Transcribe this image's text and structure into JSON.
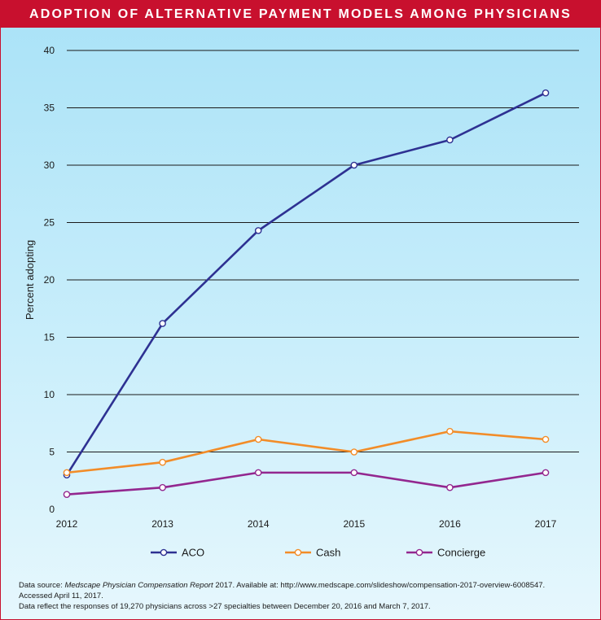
{
  "header": {
    "title": "ADOPTION OF ALTERNATIVE PAYMENT MODELS AMONG PHYSICIANS"
  },
  "colors": {
    "accent": "#c8102e",
    "ACO": "#2e3192",
    "Cash": "#f28c28",
    "Concierge": "#93278f"
  },
  "chart_data": {
    "type": "line",
    "title": "ADOPTION OF ALTERNATIVE PAYMENT MODELS AMONG PHYSICIANS",
    "xlabel": "",
    "ylabel": "Percent adopting",
    "x": [
      "2012",
      "2013",
      "2014",
      "2015",
      "2016",
      "2017"
    ],
    "ylim": [
      0,
      40
    ],
    "yticks": [
      "0",
      "5",
      "10",
      "15",
      "20",
      "25",
      "30",
      "35",
      "40"
    ],
    "grid": true,
    "legend_position": "bottom",
    "series": [
      {
        "name": "ACO",
        "values": [
          3,
          16.2,
          24.3,
          30,
          32.2,
          36.3
        ]
      },
      {
        "name": "Cash",
        "values": [
          3.2,
          4.1,
          6.1,
          5,
          6.8,
          6.1
        ]
      },
      {
        "name": "Concierge",
        "values": [
          1.3,
          1.9,
          3.2,
          3.2,
          1.9,
          3.2
        ]
      }
    ]
  },
  "notes": {
    "source_prefix": "Data source: ",
    "source_title": "Medscape Physician Compensation Report",
    "source_rest": " 2017. Available at: http://www.medscape.com/slideshow/compensation-2017-overview-6008547.",
    "accessed": "Accessed April 11, 2017.",
    "responses": "Data reflect the responses of 19,270 physicians across >27 specialties between December 20, 2016 and March 7, 2017."
  }
}
